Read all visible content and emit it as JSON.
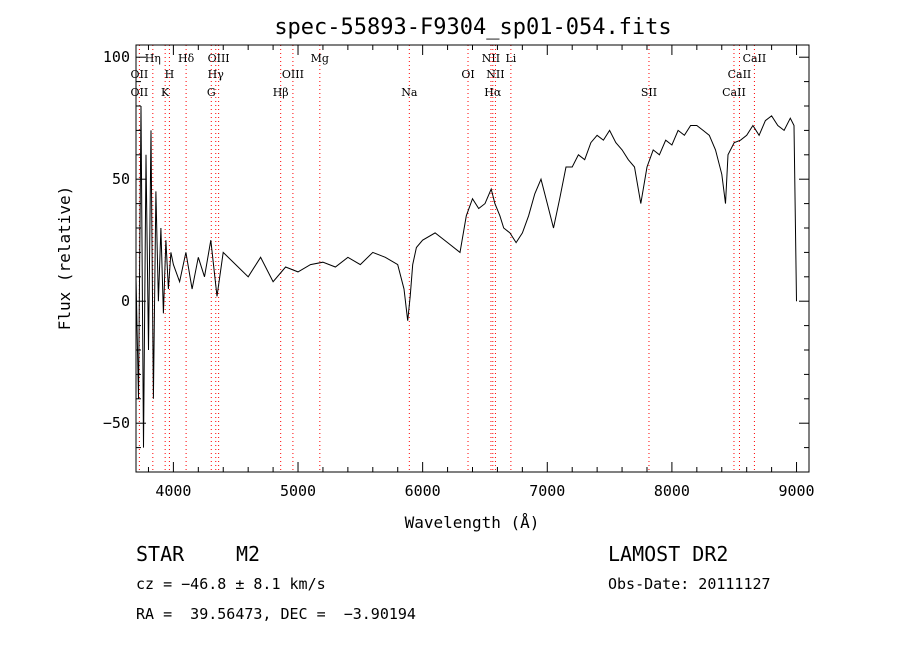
{
  "chart_data": {
    "type": "line",
    "title": "spec-55893-F9304_sp01-054.fits",
    "xlabel": "Wavelength (Å)",
    "ylabel": "Flux (relative)",
    "xlim": [
      3700,
      9100
    ],
    "ylim": [
      -70,
      105
    ],
    "xticks": [
      4000,
      5000,
      6000,
      7000,
      8000,
      9000
    ],
    "yticks": [
      -50,
      0,
      50,
      100
    ],
    "grid": false,
    "line_color": "#000000",
    "marker_line_color": "#ff0000",
    "series": [
      {
        "x": [
          3700,
          3720,
          3740,
          3760,
          3780,
          3800,
          3820,
          3840,
          3860,
          3880,
          3900,
          3920,
          3940,
          3960,
          3980,
          4000,
          4050,
          4100,
          4150,
          4200,
          4250,
          4300,
          4350,
          4400,
          4500,
          4600,
          4700,
          4800,
          4900,
          5000,
          5100,
          5200,
          5300,
          5400,
          5500,
          5600,
          5700,
          5800,
          5850,
          5880,
          5900,
          5920,
          5950,
          6000,
          6100,
          6200,
          6300,
          6350,
          6400,
          6450,
          6500,
          6550,
          6580,
          6620,
          6650,
          6700,
          6750,
          6800,
          6850,
          6900,
          6950,
          7000,
          7050,
          7100,
          7150,
          7200,
          7250,
          7300,
          7350,
          7400,
          7450,
          7500,
          7550,
          7600,
          7650,
          7700,
          7750,
          7800,
          7850,
          7900,
          7950,
          8000,
          8050,
          8100,
          8150,
          8200,
          8250,
          8300,
          8350,
          8400,
          8430,
          8450,
          8500,
          8550,
          8600,
          8650,
          8700,
          8750,
          8800,
          8850,
          8900,
          8950,
          8980,
          9000
        ],
        "y": [
          10,
          -40,
          80,
          -60,
          60,
          -20,
          70,
          -40,
          45,
          0,
          30,
          -5,
          25,
          5,
          20,
          15,
          8,
          20,
          5,
          18,
          10,
          25,
          2,
          20,
          15,
          10,
          18,
          8,
          14,
          12,
          15,
          16,
          14,
          18,
          15,
          20,
          18,
          15,
          5,
          -8,
          2,
          15,
          22,
          25,
          28,
          24,
          20,
          35,
          42,
          38,
          40,
          46,
          40,
          35,
          30,
          28,
          24,
          28,
          35,
          44,
          50,
          40,
          30,
          42,
          55,
          55,
          60,
          58,
          65,
          68,
          66,
          70,
          65,
          62,
          58,
          55,
          40,
          55,
          62,
          60,
          66,
          64,
          70,
          68,
          72,
          72,
          70,
          68,
          62,
          52,
          40,
          60,
          65,
          66,
          68,
          72,
          68,
          74,
          76,
          72,
          70,
          75,
          72,
          0
        ]
      }
    ],
    "line_markers": [
      {
        "label": "Hη",
        "x": 3835,
        "row": 0
      },
      {
        "label": "Hδ",
        "x": 4102,
        "row": 0
      },
      {
        "label": "OIII",
        "x": 4363,
        "row": 0
      },
      {
        "label": "Mg",
        "x": 5175,
        "row": 0
      },
      {
        "label": "NII",
        "x": 6548,
        "row": 0
      },
      {
        "label": "Li",
        "x": 6708,
        "row": 0
      },
      {
        "label": "CaII",
        "x": 8662,
        "row": 0
      },
      {
        "label": "OII",
        "x": 3727,
        "row": 1
      },
      {
        "label": "H",
        "x": 3968,
        "row": 1
      },
      {
        "label": "Hγ",
        "x": 4340,
        "row": 1
      },
      {
        "label": "OIII",
        "x": 4959,
        "row": 1
      },
      {
        "label": "OI",
        "x": 6364,
        "row": 1
      },
      {
        "label": "NII",
        "x": 6584,
        "row": 1
      },
      {
        "label": "CaII",
        "x": 8542,
        "row": 1
      },
      {
        "label": "OII",
        "x": 3727,
        "row": 2
      },
      {
        "label": "K",
        "x": 3934,
        "row": 2
      },
      {
        "label": "G",
        "x": 4304,
        "row": 2
      },
      {
        "label": "Hβ",
        "x": 4861,
        "row": 2
      },
      {
        "label": "Na",
        "x": 5893,
        "row": 2
      },
      {
        "label": "Hα",
        "x": 6563,
        "row": 2
      },
      {
        "label": "SII",
        "x": 7816,
        "row": 2
      },
      {
        "label": "CaII",
        "x": 8498,
        "row": 2
      }
    ]
  },
  "info": {
    "object_class": "STAR",
    "subclass": "M2",
    "survey": "LAMOST DR2",
    "redshift": "cz = −46.8 ± 8.1 km/s",
    "obs_date": "Obs-Date: 20111127",
    "coords": "RA =  39.56473, DEC =  −3.90194"
  }
}
